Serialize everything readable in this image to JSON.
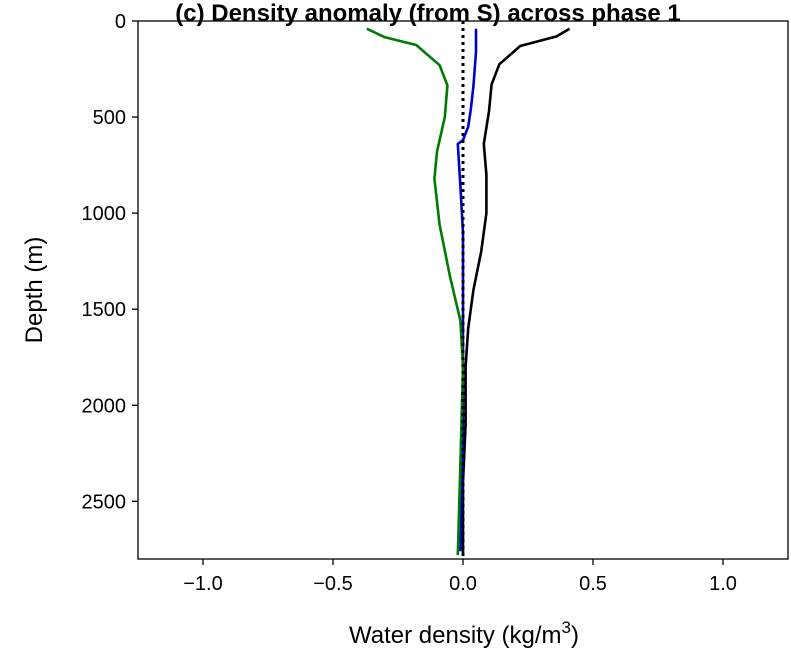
{
  "chart_data": {
    "type": "line",
    "title": "(c) Density anomaly (from S) across phase 1",
    "xlabel": "Water density (kg/m",
    "xlabel_sup": "3",
    "xlabel_suffix": ")",
    "ylabel": "Depth (m)",
    "xlim": [
      -1.25,
      1.25
    ],
    "ylim": [
      2800,
      0
    ],
    "y_inverted": true,
    "xticks": [
      -1.0,
      -0.5,
      0.0,
      0.5,
      1.0
    ],
    "xtick_labels": [
      "−1.0",
      "−0.5",
      "0.0",
      "0.5",
      "1.0"
    ],
    "yticks": [
      0,
      500,
      1000,
      1500,
      2000,
      2500
    ],
    "ytick_labels": [
      "0",
      "500",
      "1000",
      "1500",
      "2000",
      "2500"
    ],
    "grid": false,
    "series": [
      {
        "color": "#000000",
        "style": "solid",
        "points": [
          [
            0.41,
            40
          ],
          [
            0.36,
            80
          ],
          [
            0.22,
            130
          ],
          [
            0.14,
            225
          ],
          [
            0.11,
            330
          ],
          [
            0.1,
            470
          ],
          [
            0.08,
            640
          ],
          [
            0.09,
            800
          ],
          [
            0.09,
            1000
          ],
          [
            0.07,
            1200
          ],
          [
            0.04,
            1400
          ],
          [
            0.02,
            1600
          ],
          [
            0.01,
            1800
          ],
          [
            0.01,
            2100
          ],
          [
            0.0,
            2400
          ],
          [
            0.0,
            2770
          ]
        ]
      },
      {
        "color": "#0000cc",
        "style": "solid",
        "points": [
          [
            0.05,
            40
          ],
          [
            0.05,
            160
          ],
          [
            0.04,
            340
          ],
          [
            0.03,
            460
          ],
          [
            0.02,
            550
          ],
          [
            0.0,
            620
          ],
          [
            -0.02,
            640
          ],
          [
            -0.01,
            860
          ],
          [
            0.0,
            1100
          ],
          [
            0.0,
            1400
          ],
          [
            0.0,
            1800
          ],
          [
            0.0,
            2200
          ],
          [
            -0.01,
            2760
          ]
        ]
      },
      {
        "color": "#007a00",
        "style": "solid",
        "points": [
          [
            -0.37,
            40
          ],
          [
            -0.3,
            85
          ],
          [
            -0.18,
            125
          ],
          [
            -0.09,
            230
          ],
          [
            -0.06,
            335
          ],
          [
            -0.07,
            500
          ],
          [
            -0.1,
            680
          ],
          [
            -0.11,
            820
          ],
          [
            -0.09,
            1060
          ],
          [
            -0.05,
            1330
          ],
          [
            -0.01,
            1560
          ],
          [
            0.0,
            1800
          ],
          [
            -0.01,
            2300
          ],
          [
            -0.02,
            2780
          ]
        ]
      },
      {
        "color": "#000000",
        "style": "dotted",
        "points": [
          [
            0.0,
            0
          ],
          [
            0.0,
            2800
          ]
        ]
      }
    ]
  }
}
